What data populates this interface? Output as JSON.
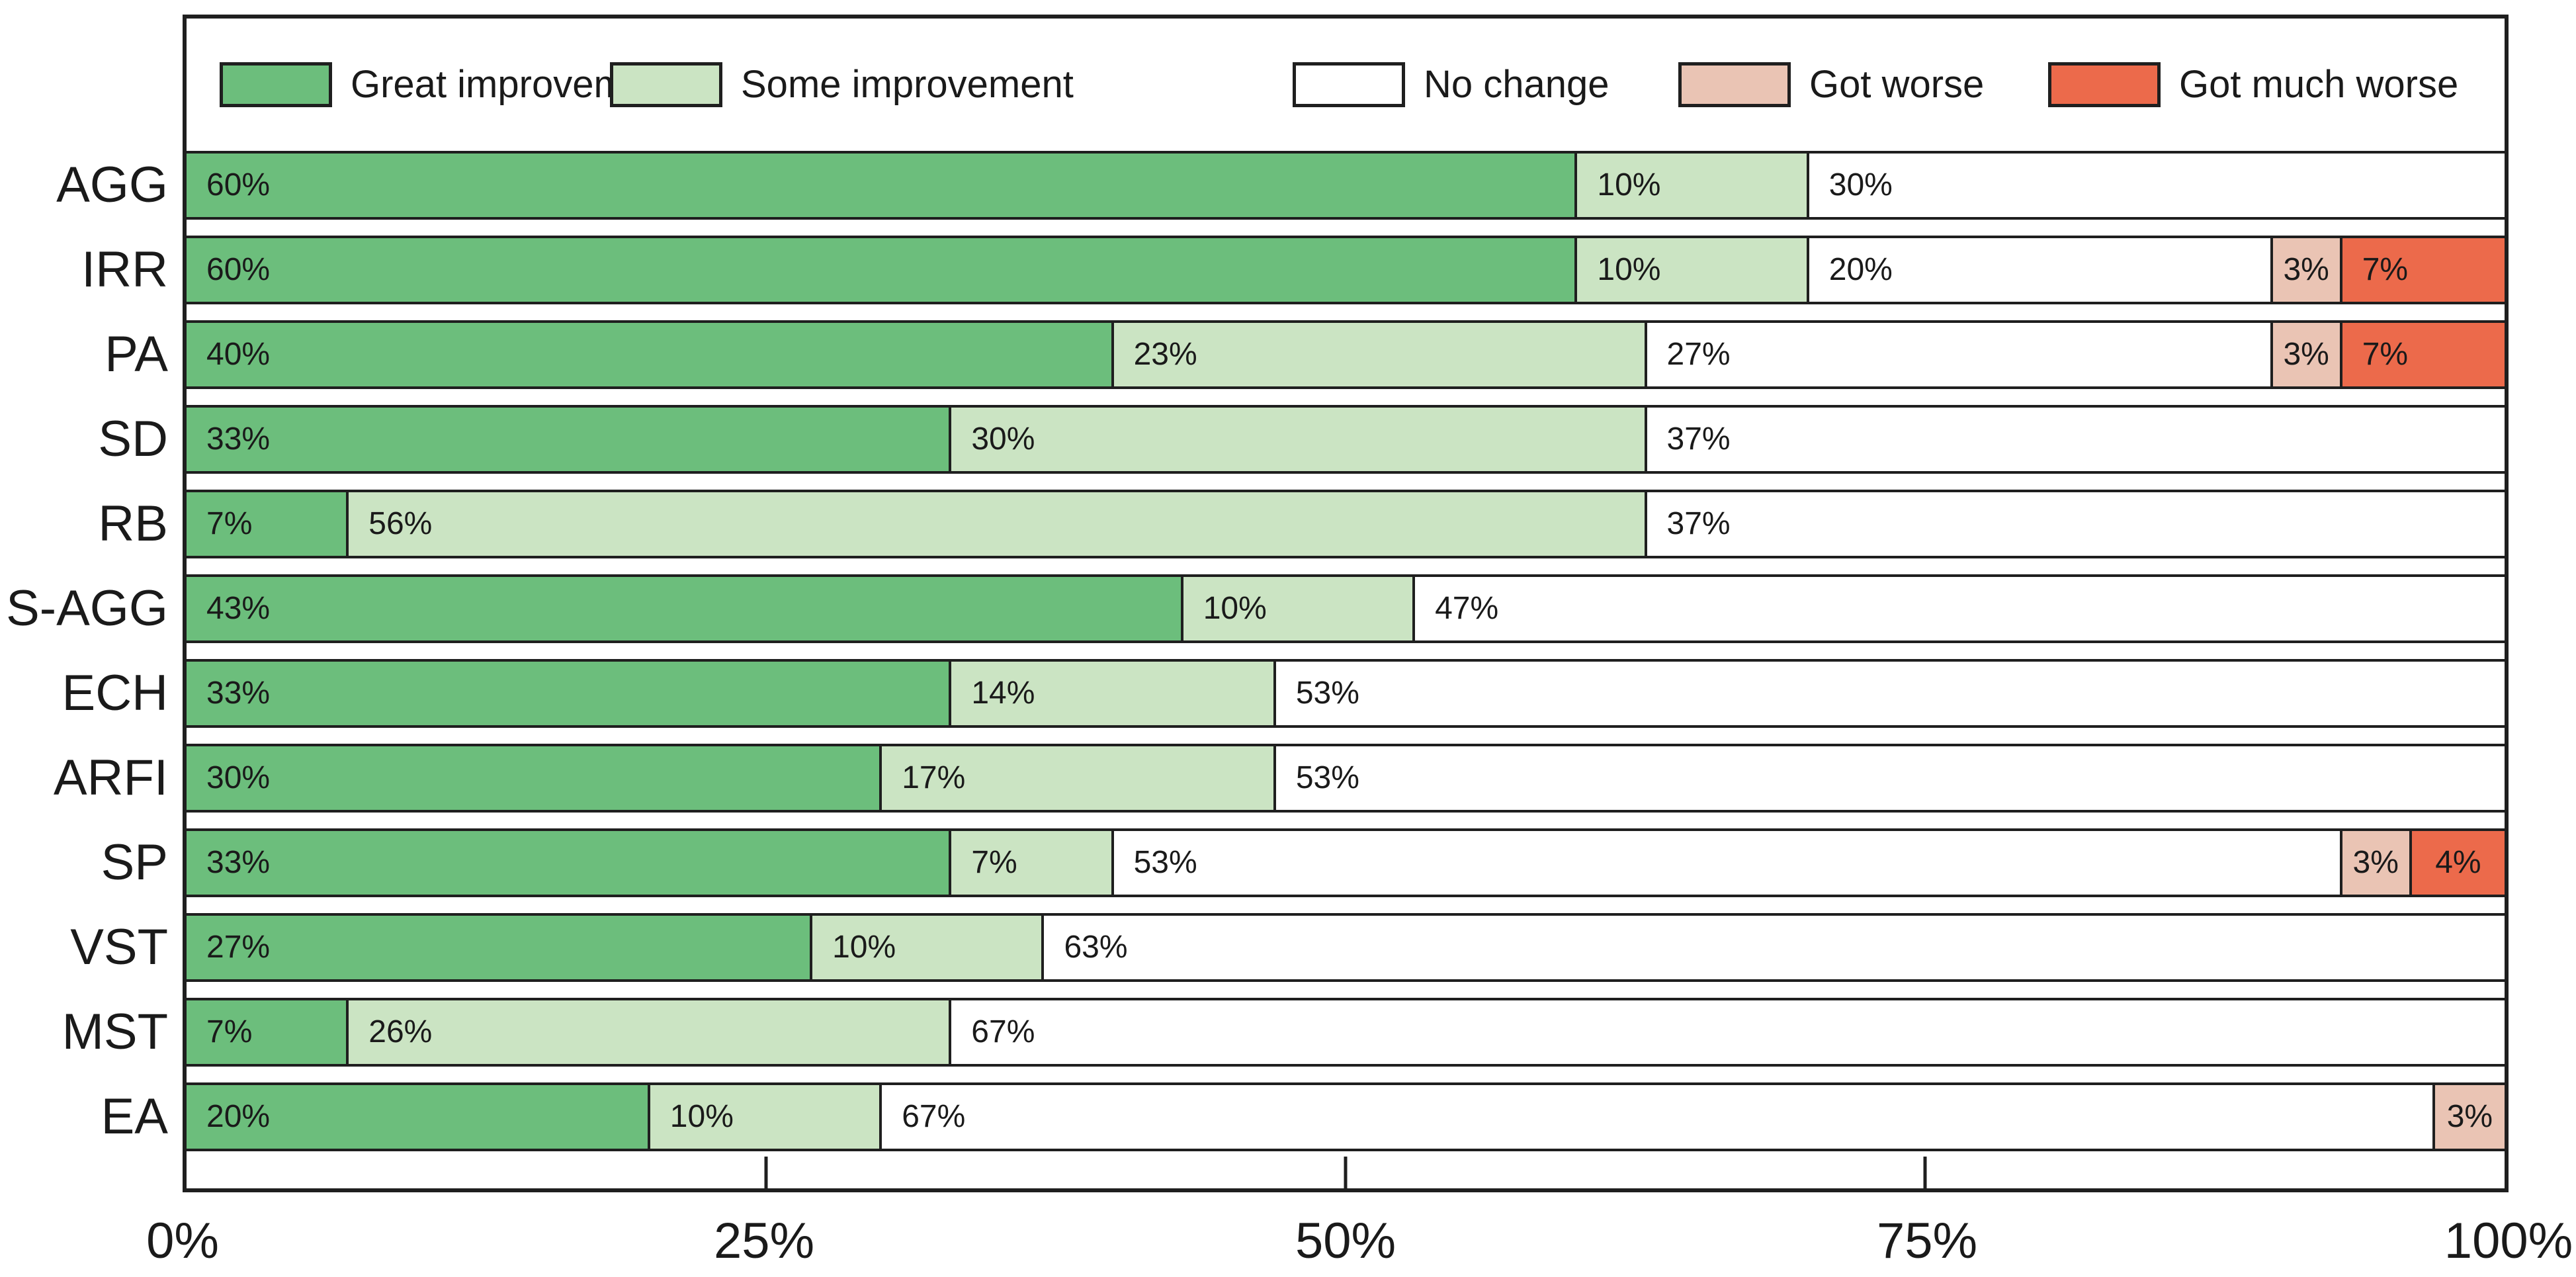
{
  "chart_data": {
    "type": "bar",
    "stacked": true,
    "orientation": "horizontal",
    "title": "",
    "xlabel": "",
    "ylabel": "",
    "xlim": [
      0,
      100
    ],
    "grid": false,
    "legend_position": "top",
    "value_suffix": "%",
    "categories": [
      "AGG",
      "IRR",
      "PA",
      "SD",
      "RB",
      "S-AGG",
      "ECH",
      "ARFI",
      "SP",
      "VST",
      "MST",
      "EA"
    ],
    "series": [
      {
        "name": "Great improvement",
        "color": "#6cbe7c",
        "values": [
          60,
          60,
          40,
          33,
          7,
          43,
          33,
          30,
          33,
          27,
          7,
          20
        ]
      },
      {
        "name": "Some improvement",
        "color": "#cbe4c3",
        "values": [
          10,
          10,
          23,
          30,
          56,
          10,
          14,
          17,
          7,
          10,
          26,
          10
        ]
      },
      {
        "name": "No change",
        "color": "#ffffff",
        "values": [
          30,
          20,
          27,
          37,
          37,
          47,
          53,
          53,
          53,
          63,
          67,
          67
        ]
      },
      {
        "name": "Got worse",
        "color": "#eac4b4",
        "values": [
          0,
          3,
          3,
          0,
          0,
          0,
          0,
          0,
          3,
          0,
          0,
          3
        ]
      },
      {
        "name": "Got much worse",
        "color": "#ec6a4b",
        "values": [
          0,
          7,
          7,
          0,
          0,
          0,
          0,
          0,
          4,
          0,
          0,
          0
        ]
      }
    ],
    "segment_labels": [
      [
        "60%",
        "10%",
        "30%",
        "",
        ""
      ],
      [
        "60%",
        "10%",
        "20%",
        "3%",
        "7%"
      ],
      [
        "40%",
        "23%",
        "27%",
        "3%",
        "7%"
      ],
      [
        "33%",
        "30%",
        "37%",
        "",
        ""
      ],
      [
        "7%",
        "56%",
        "37%",
        "",
        ""
      ],
      [
        "43%",
        "10%",
        "47%",
        "",
        ""
      ],
      [
        "33%",
        "14%",
        "53%",
        "",
        ""
      ],
      [
        "30%",
        "17%",
        "53%",
        "",
        ""
      ],
      [
        "33%",
        "7%",
        "53%",
        "3%",
        "4%"
      ],
      [
        "27%",
        "10%",
        "63%",
        "",
        ""
      ],
      [
        "7%",
        "26%",
        "67%",
        "",
        ""
      ],
      [
        "20%",
        "10%",
        "67%",
        "3%",
        ""
      ]
    ],
    "x_axis": {
      "labels": [
        {
          "text": "0%",
          "pos": 0
        },
        {
          "text": "25%",
          "pos": 25
        },
        {
          "text": "50%",
          "pos": 50
        },
        {
          "text": "75%",
          "pos": 75
        },
        {
          "text": "100%",
          "pos": 100
        }
      ],
      "tick_positions": [
        25,
        50,
        75
      ]
    },
    "style_colors": {
      "border": "#1f1f1f",
      "text": "#1a1a1a",
      "background": "#ffffff"
    }
  }
}
